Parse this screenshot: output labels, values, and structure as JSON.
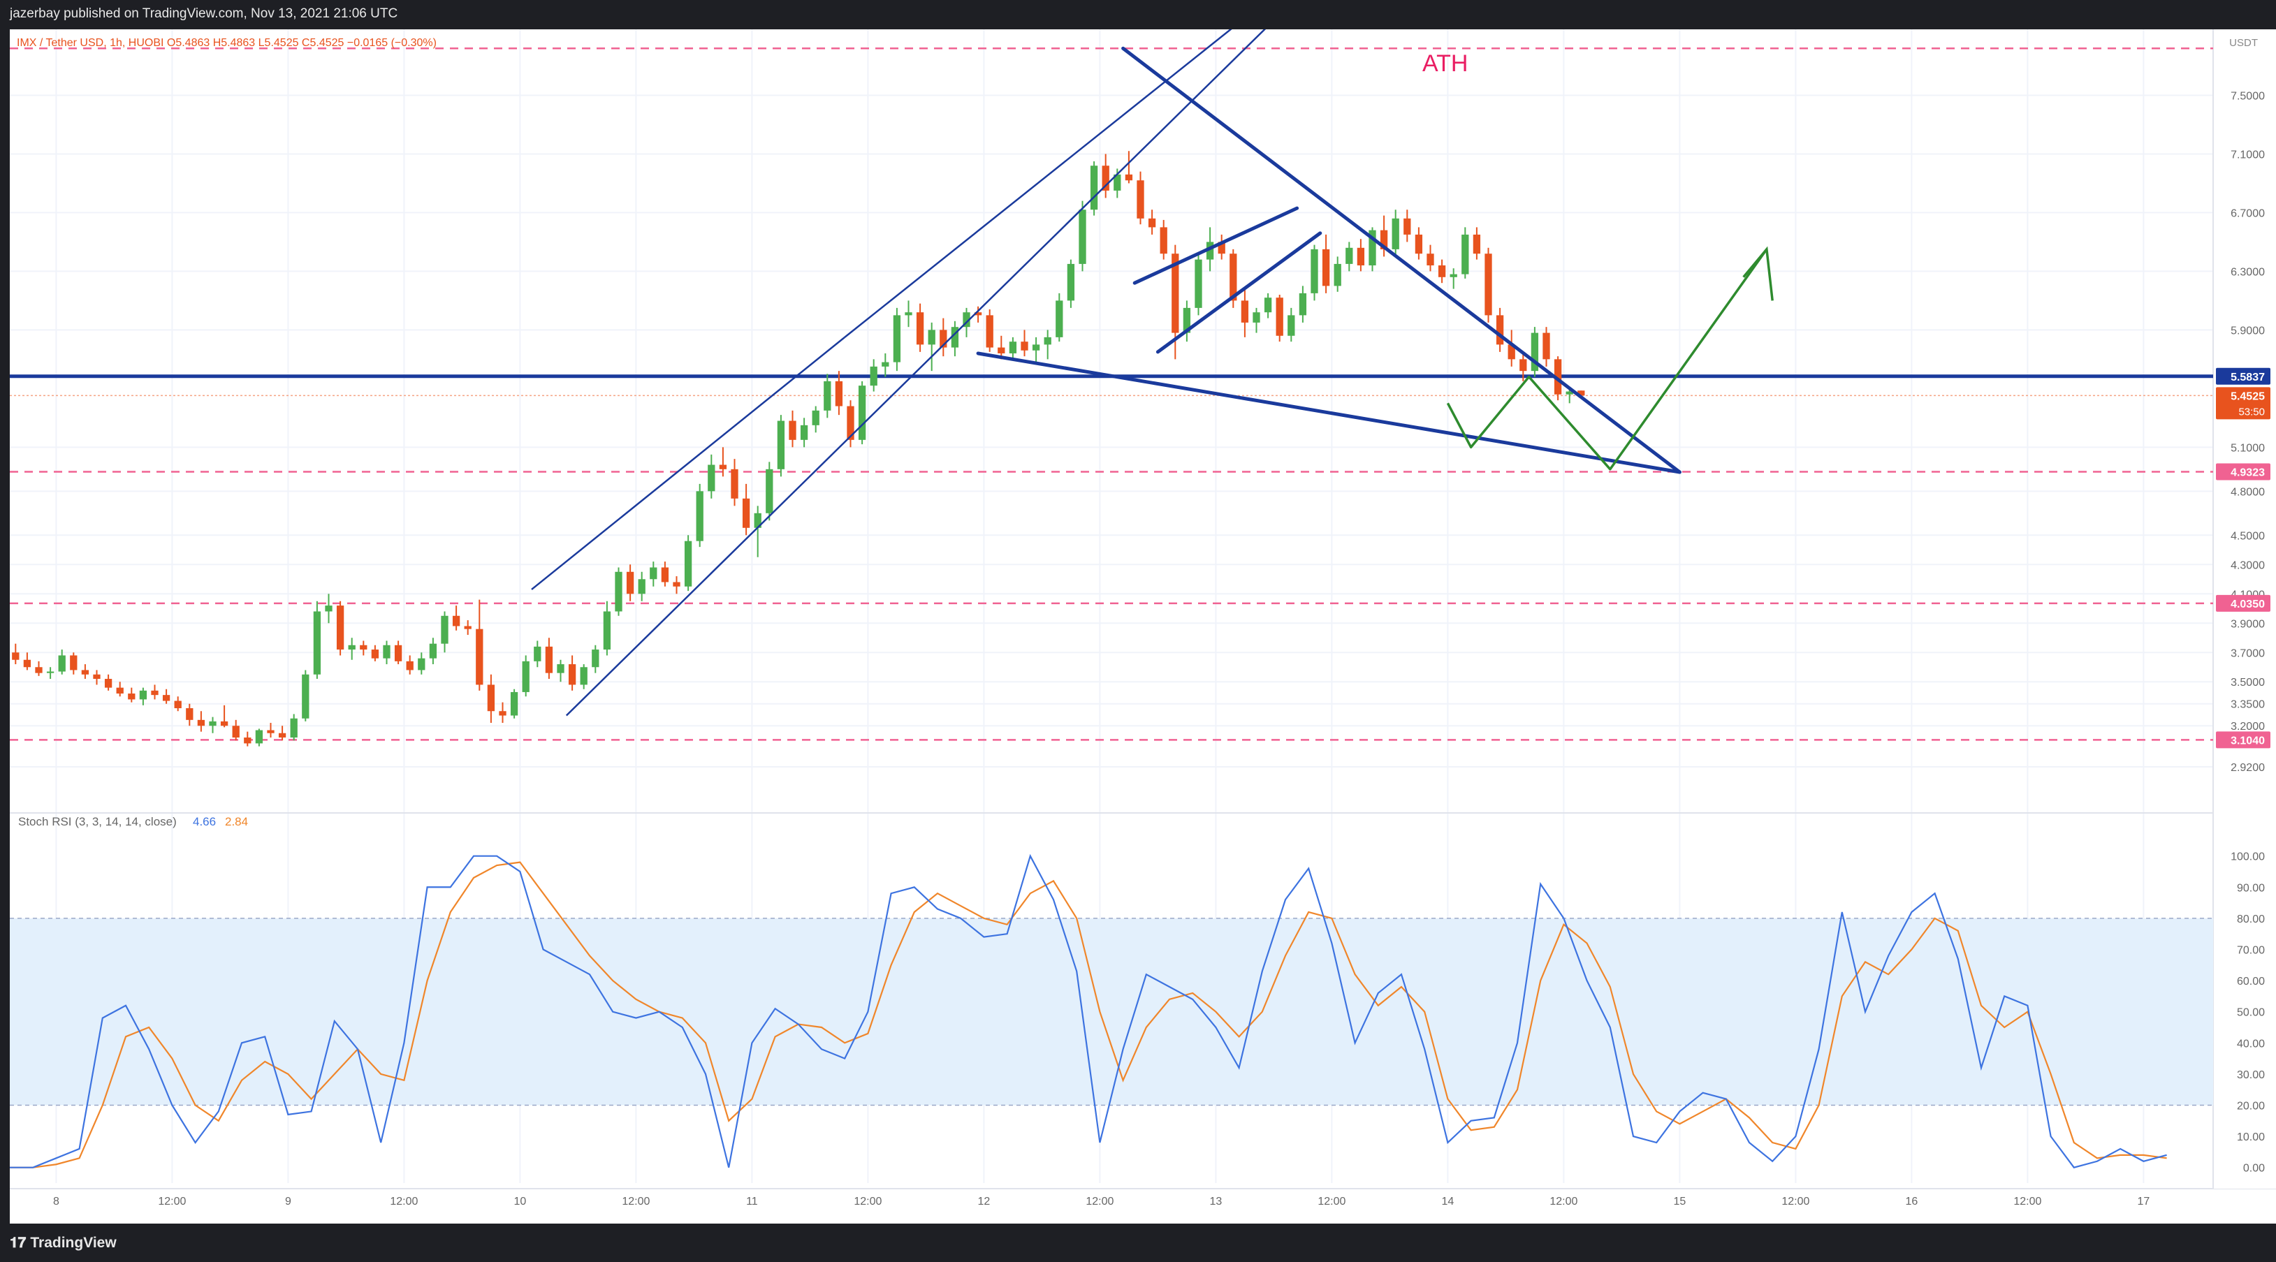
{
  "header": {
    "published_text": "jazerbay published on TradingView.com, Nov 13, 2021 21:06 UTC"
  },
  "footer": {
    "brand": "TradingView",
    "brand_icon": "tradingview-logo-icon"
  },
  "chart_data": {
    "type": "candlestick",
    "ohlc_legend": "IMX / Tether USD, 1h, HUOBI  O5.4863  H5.4863  L5.4525  C5.4525  −0.0165 (−0.30%)",
    "currency": "USDT",
    "annotation": "ATH",
    "colors": {
      "up": "#4caf50",
      "down": "#e8531e",
      "hline": "#f06292",
      "trend": "#1a3a9c",
      "projection": "#2e8b2e",
      "stoch_k": "#3d73e0",
      "stoch_d": "#f0862a",
      "ath": "#e91e63"
    },
    "price_axis": {
      "ylim": [
        2.72,
        7.95
      ],
      "ticks": [
        "7.5000",
        "7.1000",
        "6.7000",
        "6.3000",
        "5.9000",
        "5.1000",
        "4.8000",
        "4.5000",
        "4.3000",
        "4.1000",
        "3.9000",
        "3.7000",
        "3.5000",
        "3.3500",
        "3.2000",
        "2.9200"
      ],
      "ticks_v": [
        7.5,
        7.1,
        6.7,
        6.3,
        5.9,
        5.1,
        4.8,
        4.5,
        4.3,
        4.1,
        3.9,
        3.7,
        3.5,
        3.35,
        3.2,
        2.92
      ]
    },
    "time_axis": {
      "xlim": [
        0,
        190
      ],
      "labels": [
        "8",
        "12:00",
        "9",
        "12:00",
        "10",
        "12:00",
        "11",
        "12:00",
        "12",
        "12:00",
        "13",
        "12:00",
        "14",
        "12:00",
        "15",
        "12:00",
        "16",
        "12:00",
        "17"
      ],
      "label_x": [
        4,
        14,
        24,
        34,
        44,
        54,
        64,
        74,
        84,
        94,
        104,
        114,
        124,
        134,
        144,
        154,
        164,
        174,
        184
      ]
    },
    "horizontal_levels": [
      {
        "price": 7.82,
        "style": "dashed",
        "label": ""
      },
      {
        "price": 5.5837,
        "style": "solid",
        "label": "5.5837"
      },
      {
        "price": 4.9323,
        "style": "dashed",
        "label": "4.9323"
      },
      {
        "price": 4.035,
        "style": "dashed",
        "label": "4.0350"
      },
      {
        "price": 3.104,
        "style": "dashed",
        "label": "3.1040"
      }
    ],
    "last_price": {
      "value": 5.4525,
      "label": "5.4525",
      "countdown": "53:50"
    },
    "candles": [
      {
        "o": 3.7,
        "h": 3.76,
        "l": 3.62,
        "c": 3.65
      },
      {
        "o": 3.65,
        "h": 3.7,
        "l": 3.58,
        "c": 3.6
      },
      {
        "o": 3.6,
        "h": 3.64,
        "l": 3.54,
        "c": 3.56
      },
      {
        "o": 3.56,
        "h": 3.6,
        "l": 3.52,
        "c": 3.57
      },
      {
        "o": 3.57,
        "h": 3.72,
        "l": 3.55,
        "c": 3.68
      },
      {
        "o": 3.68,
        "h": 3.7,
        "l": 3.55,
        "c": 3.58
      },
      {
        "o": 3.58,
        "h": 3.62,
        "l": 3.52,
        "c": 3.55
      },
      {
        "o": 3.55,
        "h": 3.58,
        "l": 3.48,
        "c": 3.52
      },
      {
        "o": 3.52,
        "h": 3.55,
        "l": 3.44,
        "c": 3.46
      },
      {
        "o": 3.46,
        "h": 3.5,
        "l": 3.4,
        "c": 3.42
      },
      {
        "o": 3.42,
        "h": 3.46,
        "l": 3.36,
        "c": 3.38
      },
      {
        "o": 3.38,
        "h": 3.46,
        "l": 3.34,
        "c": 3.44
      },
      {
        "o": 3.44,
        "h": 3.48,
        "l": 3.38,
        "c": 3.41
      },
      {
        "o": 3.41,
        "h": 3.45,
        "l": 3.35,
        "c": 3.37
      },
      {
        "o": 3.37,
        "h": 3.4,
        "l": 3.3,
        "c": 3.32
      },
      {
        "o": 3.32,
        "h": 3.35,
        "l": 3.2,
        "c": 3.24
      },
      {
        "o": 3.24,
        "h": 3.3,
        "l": 3.16,
        "c": 3.2
      },
      {
        "o": 3.2,
        "h": 3.26,
        "l": 3.15,
        "c": 3.23
      },
      {
        "o": 3.23,
        "h": 3.34,
        "l": 3.19,
        "c": 3.2
      },
      {
        "o": 3.2,
        "h": 3.24,
        "l": 3.1,
        "c": 3.12
      },
      {
        "o": 3.12,
        "h": 3.16,
        "l": 3.06,
        "c": 3.08
      },
      {
        "o": 3.08,
        "h": 3.18,
        "l": 3.06,
        "c": 3.17
      },
      {
        "o": 3.17,
        "h": 3.22,
        "l": 3.12,
        "c": 3.15
      },
      {
        "o": 3.15,
        "h": 3.2,
        "l": 3.1,
        "c": 3.12
      },
      {
        "o": 3.12,
        "h": 3.28,
        "l": 3.1,
        "c": 3.25
      },
      {
        "o": 3.25,
        "h": 3.58,
        "l": 3.23,
        "c": 3.55
      },
      {
        "o": 3.55,
        "h": 4.05,
        "l": 3.52,
        "c": 3.98
      },
      {
        "o": 3.98,
        "h": 4.1,
        "l": 3.9,
        "c": 4.02
      },
      {
        "o": 4.02,
        "h": 4.05,
        "l": 3.68,
        "c": 3.72
      },
      {
        "o": 3.72,
        "h": 3.8,
        "l": 3.65,
        "c": 3.75
      },
      {
        "o": 3.75,
        "h": 3.78,
        "l": 3.68,
        "c": 3.72
      },
      {
        "o": 3.72,
        "h": 3.75,
        "l": 3.64,
        "c": 3.66
      },
      {
        "o": 3.66,
        "h": 3.78,
        "l": 3.62,
        "c": 3.75
      },
      {
        "o": 3.75,
        "h": 3.78,
        "l": 3.62,
        "c": 3.64
      },
      {
        "o": 3.64,
        "h": 3.68,
        "l": 3.55,
        "c": 3.58
      },
      {
        "o": 3.58,
        "h": 3.7,
        "l": 3.55,
        "c": 3.66
      },
      {
        "o": 3.66,
        "h": 3.8,
        "l": 3.62,
        "c": 3.76
      },
      {
        "o": 3.76,
        "h": 3.98,
        "l": 3.7,
        "c": 3.95
      },
      {
        "o": 3.95,
        "h": 4.02,
        "l": 3.85,
        "c": 3.88
      },
      {
        "o": 3.88,
        "h": 3.92,
        "l": 3.82,
        "c": 3.86
      },
      {
        "o": 3.86,
        "h": 4.06,
        "l": 3.44,
        "c": 3.48
      },
      {
        "o": 3.48,
        "h": 3.55,
        "l": 3.22,
        "c": 3.3
      },
      {
        "o": 3.3,
        "h": 3.36,
        "l": 3.22,
        "c": 3.27
      },
      {
        "o": 3.27,
        "h": 3.45,
        "l": 3.25,
        "c": 3.43
      },
      {
        "o": 3.43,
        "h": 3.68,
        "l": 3.4,
        "c": 3.64
      },
      {
        "o": 3.64,
        "h": 3.78,
        "l": 3.6,
        "c": 3.74
      },
      {
        "o": 3.74,
        "h": 3.8,
        "l": 3.52,
        "c": 3.56
      },
      {
        "o": 3.56,
        "h": 3.65,
        "l": 3.5,
        "c": 3.62
      },
      {
        "o": 3.62,
        "h": 3.68,
        "l": 3.44,
        "c": 3.48
      },
      {
        "o": 3.48,
        "h": 3.62,
        "l": 3.45,
        "c": 3.6
      },
      {
        "o": 3.6,
        "h": 3.75,
        "l": 3.56,
        "c": 3.72
      },
      {
        "o": 3.72,
        "h": 4.05,
        "l": 3.68,
        "c": 3.98
      },
      {
        "o": 3.98,
        "h": 4.28,
        "l": 3.95,
        "c": 4.25
      },
      {
        "o": 4.25,
        "h": 4.3,
        "l": 4.05,
        "c": 4.1
      },
      {
        "o": 4.1,
        "h": 4.25,
        "l": 4.05,
        "c": 4.2
      },
      {
        "o": 4.2,
        "h": 4.32,
        "l": 4.15,
        "c": 4.28
      },
      {
        "o": 4.28,
        "h": 4.32,
        "l": 4.15,
        "c": 4.18
      },
      {
        "o": 4.18,
        "h": 4.22,
        "l": 4.1,
        "c": 4.15
      },
      {
        "o": 4.15,
        "h": 4.5,
        "l": 4.12,
        "c": 4.46
      },
      {
        "o": 4.46,
        "h": 4.85,
        "l": 4.42,
        "c": 4.8
      },
      {
        "o": 4.8,
        "h": 5.05,
        "l": 4.75,
        "c": 4.98
      },
      {
        "o": 4.98,
        "h": 5.1,
        "l": 4.9,
        "c": 4.95
      },
      {
        "o": 4.95,
        "h": 5.02,
        "l": 4.7,
        "c": 4.75
      },
      {
        "o": 4.75,
        "h": 4.85,
        "l": 4.5,
        "c": 4.55
      },
      {
        "o": 4.55,
        "h": 4.7,
        "l": 4.35,
        "c": 4.65
      },
      {
        "o": 4.65,
        "h": 5.0,
        "l": 4.6,
        "c": 4.95
      },
      {
        "o": 4.95,
        "h": 5.32,
        "l": 4.9,
        "c": 5.28
      },
      {
        "o": 5.28,
        "h": 5.35,
        "l": 5.1,
        "c": 5.15
      },
      {
        "o": 5.15,
        "h": 5.3,
        "l": 5.1,
        "c": 5.25
      },
      {
        "o": 5.25,
        "h": 5.38,
        "l": 5.2,
        "c": 5.35
      },
      {
        "o": 5.35,
        "h": 5.6,
        "l": 5.3,
        "c": 5.55
      },
      {
        "o": 5.55,
        "h": 5.62,
        "l": 5.32,
        "c": 5.38
      },
      {
        "o": 5.38,
        "h": 5.42,
        "l": 5.1,
        "c": 5.15
      },
      {
        "o": 5.15,
        "h": 5.55,
        "l": 5.12,
        "c": 5.52
      },
      {
        "o": 5.52,
        "h": 5.7,
        "l": 5.48,
        "c": 5.65
      },
      {
        "o": 5.65,
        "h": 5.74,
        "l": 5.58,
        "c": 5.68
      },
      {
        "o": 5.68,
        "h": 6.05,
        "l": 5.62,
        "c": 6.0
      },
      {
        "o": 6.0,
        "h": 6.1,
        "l": 5.92,
        "c": 6.02
      },
      {
        "o": 6.02,
        "h": 6.08,
        "l": 5.75,
        "c": 5.8
      },
      {
        "o": 5.8,
        "h": 5.95,
        "l": 5.62,
        "c": 5.9
      },
      {
        "o": 5.9,
        "h": 5.98,
        "l": 5.72,
        "c": 5.78
      },
      {
        "o": 5.78,
        "h": 5.96,
        "l": 5.72,
        "c": 5.92
      },
      {
        "o": 5.92,
        "h": 6.05,
        "l": 5.85,
        "c": 6.02
      },
      {
        "o": 6.02,
        "h": 6.06,
        "l": 5.95,
        "c": 6.0
      },
      {
        "o": 6.0,
        "h": 6.04,
        "l": 5.75,
        "c": 5.78
      },
      {
        "o": 5.78,
        "h": 5.86,
        "l": 5.7,
        "c": 5.74
      },
      {
        "o": 5.74,
        "h": 5.85,
        "l": 5.7,
        "c": 5.82
      },
      {
        "o": 5.82,
        "h": 5.9,
        "l": 5.72,
        "c": 5.76
      },
      {
        "o": 5.76,
        "h": 5.85,
        "l": 5.68,
        "c": 5.8
      },
      {
        "o": 5.8,
        "h": 5.9,
        "l": 5.7,
        "c": 5.85
      },
      {
        "o": 5.85,
        "h": 6.15,
        "l": 5.82,
        "c": 6.1
      },
      {
        "o": 6.1,
        "h": 6.38,
        "l": 6.05,
        "c": 6.35
      },
      {
        "o": 6.35,
        "h": 6.78,
        "l": 6.3,
        "c": 6.72
      },
      {
        "o": 6.72,
        "h": 7.05,
        "l": 6.68,
        "c": 7.02
      },
      {
        "o": 7.02,
        "h": 7.1,
        "l": 6.8,
        "c": 6.85
      },
      {
        "o": 6.85,
        "h": 7.0,
        "l": 6.8,
        "c": 6.96
      },
      {
        "o": 6.96,
        "h": 7.12,
        "l": 6.9,
        "c": 6.92
      },
      {
        "o": 6.92,
        "h": 6.98,
        "l": 6.62,
        "c": 6.66
      },
      {
        "o": 6.66,
        "h": 6.72,
        "l": 6.55,
        "c": 6.6
      },
      {
        "o": 6.6,
        "h": 6.65,
        "l": 6.38,
        "c": 6.42
      },
      {
        "o": 6.42,
        "h": 6.48,
        "l": 5.7,
        "c": 5.88
      },
      {
        "o": 5.88,
        "h": 6.1,
        "l": 5.82,
        "c": 6.05
      },
      {
        "o": 6.05,
        "h": 6.42,
        "l": 6.0,
        "c": 6.38
      },
      {
        "o": 6.38,
        "h": 6.6,
        "l": 6.3,
        "c": 6.5
      },
      {
        "o": 6.5,
        "h": 6.55,
        "l": 6.38,
        "c": 6.42
      },
      {
        "o": 6.42,
        "h": 6.45,
        "l": 6.05,
        "c": 6.1
      },
      {
        "o": 6.1,
        "h": 6.18,
        "l": 5.85,
        "c": 5.95
      },
      {
        "o": 5.95,
        "h": 6.05,
        "l": 5.88,
        "c": 6.02
      },
      {
        "o": 6.02,
        "h": 6.15,
        "l": 5.98,
        "c": 6.12
      },
      {
        "o": 6.12,
        "h": 6.14,
        "l": 5.82,
        "c": 5.86
      },
      {
        "o": 5.86,
        "h": 6.05,
        "l": 5.82,
        "c": 6.0
      },
      {
        "o": 6.0,
        "h": 6.2,
        "l": 5.95,
        "c": 6.15
      },
      {
        "o": 6.15,
        "h": 6.48,
        "l": 6.1,
        "c": 6.45
      },
      {
        "o": 6.45,
        "h": 6.55,
        "l": 6.15,
        "c": 6.2
      },
      {
        "o": 6.2,
        "h": 6.4,
        "l": 6.16,
        "c": 6.35
      },
      {
        "o": 6.35,
        "h": 6.5,
        "l": 6.3,
        "c": 6.46
      },
      {
        "o": 6.46,
        "h": 6.52,
        "l": 6.3,
        "c": 6.34
      },
      {
        "o": 6.34,
        "h": 6.6,
        "l": 6.3,
        "c": 6.58
      },
      {
        "o": 6.58,
        "h": 6.68,
        "l": 6.4,
        "c": 6.45
      },
      {
        "o": 6.45,
        "h": 6.72,
        "l": 6.4,
        "c": 6.66
      },
      {
        "o": 6.66,
        "h": 6.72,
        "l": 6.5,
        "c": 6.55
      },
      {
        "o": 6.55,
        "h": 6.6,
        "l": 6.38,
        "c": 6.42
      },
      {
        "o": 6.42,
        "h": 6.48,
        "l": 6.3,
        "c": 6.34
      },
      {
        "o": 6.34,
        "h": 6.38,
        "l": 6.22,
        "c": 6.26
      },
      {
        "o": 6.26,
        "h": 6.32,
        "l": 6.18,
        "c": 6.28
      },
      {
        "o": 6.28,
        "h": 6.6,
        "l": 6.25,
        "c": 6.55
      },
      {
        "o": 6.55,
        "h": 6.6,
        "l": 6.38,
        "c": 6.42
      },
      {
        "o": 6.42,
        "h": 6.46,
        "l": 5.95,
        "c": 6.0
      },
      {
        "o": 6.0,
        "h": 6.05,
        "l": 5.75,
        "c": 5.8
      },
      {
        "o": 5.8,
        "h": 5.9,
        "l": 5.65,
        "c": 5.7
      },
      {
        "o": 5.7,
        "h": 5.75,
        "l": 5.55,
        "c": 5.62
      },
      {
        "o": 5.62,
        "h": 5.92,
        "l": 5.58,
        "c": 5.88
      },
      {
        "o": 5.88,
        "h": 5.92,
        "l": 5.65,
        "c": 5.7
      },
      {
        "o": 5.7,
        "h": 5.72,
        "l": 5.42,
        "c": 5.46
      },
      {
        "o": 5.46,
        "h": 5.5,
        "l": 5.4,
        "c": 5.48
      },
      {
        "o": 5.4863,
        "h": 5.4863,
        "l": 5.4525,
        "c": 5.4525
      }
    ],
    "stoch_rsi": {
      "label": "Stoch RSI (3, 3, 14, 14, close)",
      "k_label": "4.66",
      "d_label": "2.84",
      "ylim": [
        -5,
        108
      ],
      "ticks": [
        "100.00",
        "90.00",
        "80.00",
        "70.00",
        "60.00",
        "50.00",
        "40.00",
        "30.00",
        "20.00",
        "10.00",
        "0.00"
      ],
      "ticks_v": [
        100,
        90,
        80,
        70,
        60,
        50,
        40,
        30,
        20,
        10,
        0
      ],
      "band": [
        20,
        80
      ],
      "k": [
        0,
        0,
        3,
        6,
        48,
        52,
        38,
        20,
        8,
        18,
        40,
        42,
        17,
        18,
        47,
        38,
        8,
        40,
        90,
        90,
        100,
        100,
        95,
        70,
        66,
        62,
        50,
        48,
        50,
        45,
        30,
        0,
        40,
        51,
        46,
        38,
        35,
        50,
        88,
        90,
        83,
        80,
        74,
        75,
        100,
        86,
        63,
        8,
        38,
        62,
        58,
        54,
        45,
        32,
        63,
        86,
        96,
        72,
        40,
        56,
        62,
        38,
        8,
        15,
        16,
        40,
        91,
        80,
        60,
        45,
        10,
        8,
        18,
        24,
        22,
        8,
        2,
        10,
        38,
        82,
        50,
        68,
        82,
        88,
        67,
        32,
        55,
        52,
        10,
        0,
        2,
        6,
        2,
        4
      ],
      "d": [
        0,
        0,
        1,
        3,
        20,
        42,
        45,
        35,
        20,
        15,
        28,
        34,
        30,
        22,
        30,
        38,
        30,
        28,
        60,
        82,
        93,
        97,
        98,
        88,
        78,
        68,
        60,
        54,
        50,
        48,
        40,
        15,
        22,
        42,
        46,
        45,
        40,
        43,
        65,
        82,
        88,
        84,
        80,
        78,
        88,
        92,
        80,
        50,
        28,
        45,
        54,
        56,
        50,
        42,
        50,
        68,
        82,
        80,
        62,
        52,
        58,
        50,
        22,
        12,
        13,
        25,
        60,
        78,
        72,
        58,
        30,
        18,
        14,
        18,
        22,
        16,
        8,
        6,
        20,
        55,
        66,
        62,
        70,
        80,
        76,
        52,
        45,
        50,
        30,
        8,
        3,
        4,
        4,
        3
      ]
    },
    "drawings": {
      "channel_upper": [
        [
          45,
          7.72
        ],
        [
          114,
          13.0
        ]
      ],
      "channel_lower": [
        [
          48,
          3.27
        ],
        [
          114,
          9.0
        ]
      ],
      "triangle_upper": [
        [
          96,
          7.82
        ],
        [
          144,
          4.93
        ]
      ],
      "triangle_lower": [
        [
          83.5,
          5.74
        ],
        [
          144,
          4.93
        ]
      ],
      "wedge_upper": [
        [
          97,
          6.22
        ],
        [
          111,
          6.73
        ]
      ],
      "wedge_lower": [
        [
          99,
          5.75
        ],
        [
          113,
          6.56
        ]
      ],
      "projection_path": [
        [
          124,
          5.4
        ],
        [
          126,
          5.1
        ],
        [
          131,
          5.58
        ],
        [
          138,
          4.95
        ],
        [
          151.5,
          6.45
        ]
      ],
      "arrow_head": [
        [
          149.5,
          6.26
        ],
        [
          151.5,
          6.45
        ],
        [
          152,
          6.1
        ]
      ]
    }
  }
}
